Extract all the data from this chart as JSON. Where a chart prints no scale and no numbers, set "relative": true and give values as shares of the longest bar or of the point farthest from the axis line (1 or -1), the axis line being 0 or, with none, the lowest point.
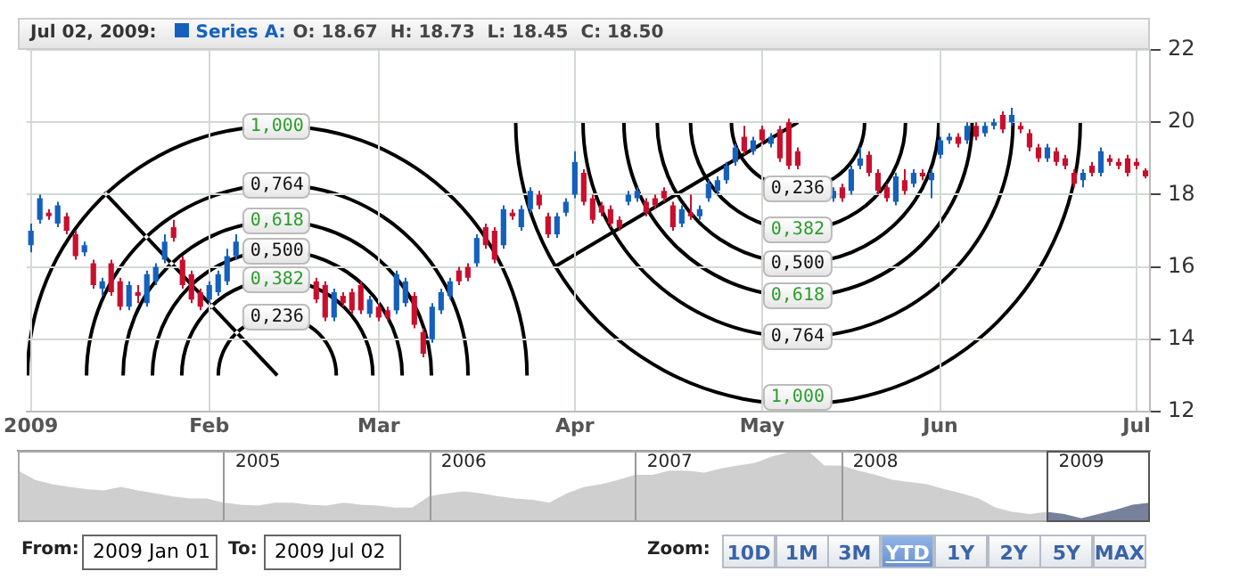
{
  "chart_data": [
    {
      "type": "candlestick",
      "title": "Jul 02, 2009:",
      "grid": true,
      "ylim": [
        12,
        22
      ],
      "yticks": [
        12,
        14,
        16,
        18,
        20,
        22
      ],
      "categories": [
        "2009",
        null,
        null,
        null,
        null,
        null,
        null,
        null,
        null,
        null,
        null,
        null,
        null,
        null,
        null,
        null,
        null,
        null,
        null,
        null,
        "Feb",
        null,
        null,
        null,
        null,
        null,
        null,
        null,
        null,
        null,
        null,
        null,
        null,
        null,
        null,
        null,
        null,
        null,
        null,
        "Mar",
        null,
        null,
        null,
        null,
        null,
        null,
        null,
        null,
        null,
        null,
        null,
        null,
        null,
        null,
        null,
        null,
        null,
        null,
        null,
        null,
        null,
        "Apr",
        null,
        null,
        null,
        null,
        null,
        null,
        null,
        null,
        null,
        null,
        null,
        null,
        null,
        null,
        null,
        null,
        null,
        null,
        null,
        null,
        "May",
        null,
        null,
        null,
        null,
        null,
        null,
        null,
        null,
        null,
        null,
        null,
        null,
        null,
        null,
        null,
        null,
        null,
        null,
        null,
        "Jun",
        null,
        null,
        null,
        null,
        null,
        null,
        null,
        null,
        null,
        null,
        null,
        null,
        null,
        null,
        null,
        null,
        null,
        null,
        null,
        null,
        null,
        "Jul",
        null
      ],
      "series": [
        {
          "name": "Series A:",
          "color": "#1560bd",
          "colors": [
            "#1560bd",
            "#1560bd",
            "#c8102e",
            "#1560bd",
            "#c8102e",
            "#c8102e",
            "#1560bd",
            "#c8102e",
            "#1560bd",
            "#c8102e",
            "#c8102e",
            "#1560bd",
            "#c8102e",
            "#1560bd",
            "#1560bd",
            "#1560bd",
            "#c8102e",
            "#c8102e",
            "#c8102e",
            "#c8102e",
            "#1560bd",
            "#1560bd",
            "#1560bd",
            "#1560bd",
            null,
            null,
            null,
            null,
            null,
            null,
            null,
            null,
            "#c8102e",
            "#c8102e",
            "#1560bd",
            "#c8102e",
            "#c8102e",
            "#c8102e",
            "#1560bd",
            "#c8102e",
            "#c8102e",
            "#1560bd",
            "#1560bd",
            "#c8102e",
            "#c8102e",
            "#1560bd",
            "#1560bd",
            "#1560bd",
            "#c8102e",
            "#c8102e",
            "#1560bd",
            "#c8102e",
            "#c8102e",
            "#1560bd",
            "#c8102e",
            "#1560bd",
            "#1560bd",
            "#c8102e",
            "#c8102e",
            "#1560bd",
            "#1560bd",
            "#1560bd",
            "#c8102e",
            "#c8102e",
            "#c8102e",
            "#c8102e",
            "#c8102e",
            "#1560bd",
            "#1560bd",
            "#c8102e",
            "#c8102e",
            "#c8102e",
            "#c8102e",
            "#1560bd",
            "#c8102e",
            "#1560bd",
            "#1560bd",
            "#1560bd",
            "#1560bd",
            "#1560bd",
            "#c8102e",
            "#1560bd",
            "#c8102e",
            "#1560bd",
            "#c8102e",
            "#c8102e",
            "#c8102e",
            null,
            null,
            null,
            "#1560bd",
            "#c8102e",
            "#1560bd",
            "#1560bd",
            "#c8102e",
            "#c8102e",
            "#c8102e",
            "#1560bd",
            "#c8102e",
            "#1560bd",
            "#c8102e",
            "#1560bd",
            "#1560bd",
            "#1560bd",
            "#c8102e",
            "#1560bd",
            "#c8102e",
            "#1560bd",
            "#1560bd",
            "#c8102e",
            "#1560bd",
            "#c8102e",
            "#c8102e",
            "#c8102e",
            "#1560bd",
            "#c8102e",
            "#c8102e",
            "#c8102e",
            "#1560bd",
            "#c8102e",
            "#1560bd",
            "#c8102e",
            "#c8102e",
            "#c8102e",
            "#c8102e",
            "#c8102e"
          ],
          "ohlc": [
            [
              16.6,
              17.2,
              16.4,
              17.0
            ],
            [
              17.3,
              18.0,
              17.2,
              17.9
            ],
            [
              17.5,
              17.6,
              17.3,
              17.4
            ],
            [
              17.2,
              17.8,
              17.1,
              17.7
            ],
            [
              17.4,
              17.5,
              16.9,
              17.0
            ],
            [
              16.9,
              17.0,
              16.2,
              16.3
            ],
            [
              16.4,
              16.7,
              16.3,
              16.6
            ],
            [
              16.1,
              16.2,
              15.4,
              15.5
            ],
            [
              15.4,
              15.7,
              15.2,
              15.6
            ],
            [
              16.1,
              16.2,
              15.2,
              15.3
            ],
            [
              15.6,
              15.7,
              14.8,
              14.9
            ],
            [
              14.9,
              15.6,
              14.8,
              15.5
            ],
            [
              15.3,
              15.5,
              15.0,
              15.2
            ],
            [
              15.0,
              15.9,
              14.9,
              15.8
            ],
            [
              15.6,
              16.1,
              15.5,
              16.0
            ],
            [
              16.2,
              16.9,
              16.1,
              16.7
            ],
            [
              17.1,
              17.3,
              16.7,
              16.8
            ],
            [
              16.2,
              16.3,
              15.4,
              15.5
            ],
            [
              15.8,
              15.9,
              15.0,
              15.1
            ],
            [
              15.3,
              15.4,
              14.8,
              14.9
            ],
            [
              15.1,
              15.6,
              15.0,
              15.5
            ],
            [
              15.3,
              15.9,
              15.2,
              15.8
            ],
            [
              15.6,
              16.5,
              15.5,
              16.3
            ],
            [
              16.3,
              16.9,
              16.2,
              16.7
            ],
            null,
            null,
            null,
            null,
            null,
            null,
            null,
            null,
            [
              15.6,
              15.7,
              15.0,
              15.1
            ],
            [
              15.5,
              15.6,
              14.5,
              14.6
            ],
            [
              14.6,
              15.4,
              14.5,
              15.3
            ],
            [
              15.2,
              15.3,
              14.9,
              15.0
            ],
            [
              15.3,
              15.4,
              14.7,
              14.8
            ],
            [
              15.5,
              15.6,
              14.7,
              14.8
            ],
            [
              14.7,
              15.2,
              14.6,
              15.1
            ],
            [
              14.9,
              15.0,
              14.5,
              14.6
            ],
            [
              14.8,
              14.9,
              14.5,
              14.6
            ],
            [
              14.8,
              15.9,
              14.7,
              15.8
            ],
            [
              15.0,
              15.7,
              14.9,
              15.6
            ],
            [
              15.2,
              15.3,
              14.3,
              14.4
            ],
            [
              14.2,
              14.3,
              13.5,
              13.6
            ],
            [
              14.0,
              15.0,
              13.9,
              14.9
            ],
            [
              14.8,
              15.4,
              14.7,
              15.3
            ],
            [
              15.2,
              15.7,
              15.1,
              15.6
            ],
            [
              15.9,
              16.0,
              15.5,
              15.6
            ],
            [
              16.0,
              16.1,
              15.6,
              15.7
            ],
            [
              16.1,
              16.9,
              16.0,
              16.8
            ],
            [
              17.1,
              17.2,
              16.5,
              16.6
            ],
            [
              17.0,
              17.1,
              16.1,
              16.2
            ],
            [
              16.6,
              17.7,
              16.5,
              17.6
            ],
            [
              17.5,
              17.6,
              17.3,
              17.4
            ],
            [
              17.1,
              17.7,
              17.0,
              17.6
            ],
            [
              17.6,
              18.2,
              17.5,
              18.1
            ],
            [
              18.0,
              18.1,
              17.6,
              17.7
            ],
            [
              17.4,
              17.5,
              16.8,
              16.9
            ],
            [
              16.9,
              17.5,
              16.8,
              17.4
            ],
            [
              17.5,
              17.9,
              17.4,
              17.8
            ],
            [
              18.0,
              19.2,
              17.9,
              18.9
            ],
            [
              18.6,
              18.7,
              17.7,
              17.8
            ],
            [
              17.9,
              18.0,
              17.2,
              17.3
            ],
            [
              17.7,
              17.8,
              17.4,
              17.5
            ],
            [
              17.6,
              17.7,
              17.1,
              17.2
            ],
            [
              17.3,
              17.4,
              17.0,
              17.1
            ],
            [
              17.8,
              18.1,
              17.7,
              18.0
            ],
            [
              17.9,
              18.2,
              17.8,
              18.1
            ],
            [
              17.8,
              17.9,
              17.4,
              17.5
            ],
            [
              17.9,
              18.0,
              17.6,
              17.7
            ],
            [
              18.1,
              18.2,
              17.8,
              17.9
            ],
            [
              17.7,
              17.8,
              17.0,
              17.1
            ],
            [
              17.2,
              17.7,
              17.1,
              17.6
            ],
            [
              17.5,
              18.0,
              17.3,
              17.4
            ],
            [
              17.4,
              17.7,
              17.3,
              17.6
            ],
            [
              17.9,
              18.4,
              17.8,
              18.3
            ],
            [
              18.1,
              18.5,
              18.0,
              18.4
            ],
            [
              18.4,
              18.9,
              18.3,
              18.8
            ],
            [
              18.9,
              19.4,
              18.8,
              19.3
            ],
            [
              19.6,
              19.9,
              19.1,
              19.2
            ],
            [
              19.2,
              19.6,
              19.1,
              19.5
            ],
            [
              19.8,
              19.9,
              19.4,
              19.5
            ],
            [
              19.4,
              19.7,
              19.3,
              19.6
            ],
            [
              19.8,
              19.9,
              18.9,
              19.0
            ],
            [
              20.0,
              20.1,
              18.7,
              18.8
            ],
            [
              19.2,
              19.3,
              18.7,
              18.8
            ],
            null,
            null,
            null,
            [
              17.9,
              18.2,
              17.8,
              18.1
            ],
            [
              18.2,
              18.3,
              17.8,
              17.9
            ],
            [
              18.1,
              18.8,
              18.0,
              18.7
            ],
            [
              18.8,
              19.3,
              18.7,
              19.0
            ],
            [
              19.1,
              19.2,
              18.5,
              18.6
            ],
            [
              18.6,
              18.7,
              18.0,
              18.1
            ],
            [
              18.2,
              18.3,
              17.8,
              17.9
            ],
            [
              17.8,
              18.6,
              17.7,
              18.5
            ],
            [
              18.4,
              18.7,
              18.0,
              18.1
            ],
            [
              18.3,
              18.7,
              18.2,
              18.6
            ],
            [
              18.6,
              18.7,
              18.4,
              18.5
            ],
            [
              18.4,
              18.7,
              17.9,
              18.6
            ],
            [
              19.1,
              19.6,
              19.0,
              19.5
            ],
            [
              19.5,
              19.7,
              19.4,
              19.6
            ],
            [
              19.6,
              19.7,
              19.3,
              19.4
            ],
            [
              19.5,
              20.0,
              19.4,
              19.9
            ],
            [
              19.9,
              20.0,
              19.5,
              19.6
            ],
            [
              19.7,
              20.0,
              19.6,
              19.9
            ],
            [
              19.9,
              20.1,
              19.8,
              20.0
            ],
            [
              20.2,
              20.3,
              19.7,
              19.8
            ],
            [
              20.0,
              20.4,
              19.9,
              20.2
            ],
            [
              19.9,
              20.0,
              19.7,
              19.8
            ],
            [
              19.7,
              19.8,
              19.2,
              19.3
            ],
            [
              19.3,
              19.4,
              18.9,
              19.0
            ],
            [
              19.0,
              19.4,
              18.9,
              19.3
            ],
            [
              19.2,
              19.3,
              18.8,
              18.9
            ],
            [
              19.0,
              19.1,
              18.7,
              18.8
            ],
            [
              18.6,
              18.7,
              18.2,
              18.3
            ],
            [
              18.4,
              18.7,
              18.2,
              18.6
            ],
            [
              18.8,
              18.9,
              18.5,
              18.6
            ],
            [
              18.6,
              19.3,
              18.5,
              19.2
            ],
            [
              19.0,
              19.1,
              18.8,
              18.9
            ],
            [
              18.9,
              19.0,
              18.7,
              18.8
            ],
            [
              19.0,
              19.1,
              18.5,
              18.6
            ],
            [
              18.9,
              19.0,
              18.7,
              18.8
            ],
            [
              18.67,
              18.73,
              18.45,
              18.5
            ]
          ]
        }
      ],
      "annotations": [
        "1,000",
        "0,764",
        "0,618",
        "0,500",
        "0,382",
        "0,236",
        "0,236",
        "0,382",
        "0,500",
        "0,618",
        "0,764",
        "1,000",
        "O: 18.67  H: 18.73  L: 18.45  C: 18.50"
      ]
    },
    {
      "type": "area",
      "relative": true,
      "categories": [
        null,
        null,
        null,
        null,
        null,
        null,
        null,
        null,
        null,
        null,
        null,
        null,
        null,
        null,
        "2005",
        null,
        null,
        null,
        null,
        null,
        null,
        null,
        null,
        null,
        null,
        null,
        "2006",
        null,
        null,
        null,
        null,
        null,
        null,
        null,
        null,
        null,
        null,
        null,
        "2007",
        null,
        null,
        null,
        null,
        null,
        null,
        null,
        null,
        null,
        null,
        null,
        "2008",
        null,
        null,
        null,
        null,
        null,
        null,
        null,
        null,
        null,
        null,
        null,
        "2009",
        null,
        null,
        null,
        null
      ],
      "series": [
        {
          "color": "#cfcfcf",
          "values": [
            0.71,
            0.58,
            0.52,
            0.48,
            0.45,
            0.43,
            0.48,
            0.43,
            0.39,
            0.35,
            0.32,
            0.32,
            0.26,
            0.23,
            0.22,
            0.26,
            0.26,
            0.23,
            0.22,
            0.26,
            0.23,
            0.22,
            0.19,
            0.19,
            0.35,
            0.39,
            0.42,
            0.39,
            0.35,
            0.32,
            0.3,
            0.26,
            0.39,
            0.48,
            0.52,
            0.58,
            0.65,
            0.65,
            0.71,
            0.71,
            0.68,
            0.74,
            0.78,
            0.82,
            0.91,
            0.97,
            1,
            0.78,
            0.78,
            0.71,
            0.65,
            0.58,
            0.55,
            0.52,
            0.45,
            0.39,
            0.32,
            0.19,
            0.13,
            0.1,
            0.13,
            null,
            null,
            null,
            null,
            null,
            null
          ]
        },
        {
          "color": "#77819c",
          "values": [
            null,
            null,
            null,
            null,
            null,
            null,
            null,
            null,
            null,
            null,
            null,
            null,
            null,
            null,
            null,
            null,
            null,
            null,
            null,
            null,
            null,
            null,
            null,
            null,
            null,
            null,
            null,
            null,
            null,
            null,
            null,
            null,
            null,
            null,
            null,
            null,
            null,
            null,
            null,
            null,
            null,
            null,
            null,
            null,
            null,
            null,
            null,
            null,
            null,
            null,
            null,
            null,
            null,
            null,
            null,
            null,
            null,
            null,
            null,
            null,
            0.13,
            0.1,
            0.04,
            0.1,
            0.16,
            0.23,
            0.26
          ]
        }
      ]
    },
    {
      "type": "other",
      "annotations": [
        "From:",
        "2009 Jan 01",
        "To:",
        "2009 Jul 02",
        "Zoom:",
        "10D",
        "1M",
        "3M",
        "YTD",
        "1Y",
        "2Y",
        "5Y",
        "MAX"
      ]
    }
  ]
}
